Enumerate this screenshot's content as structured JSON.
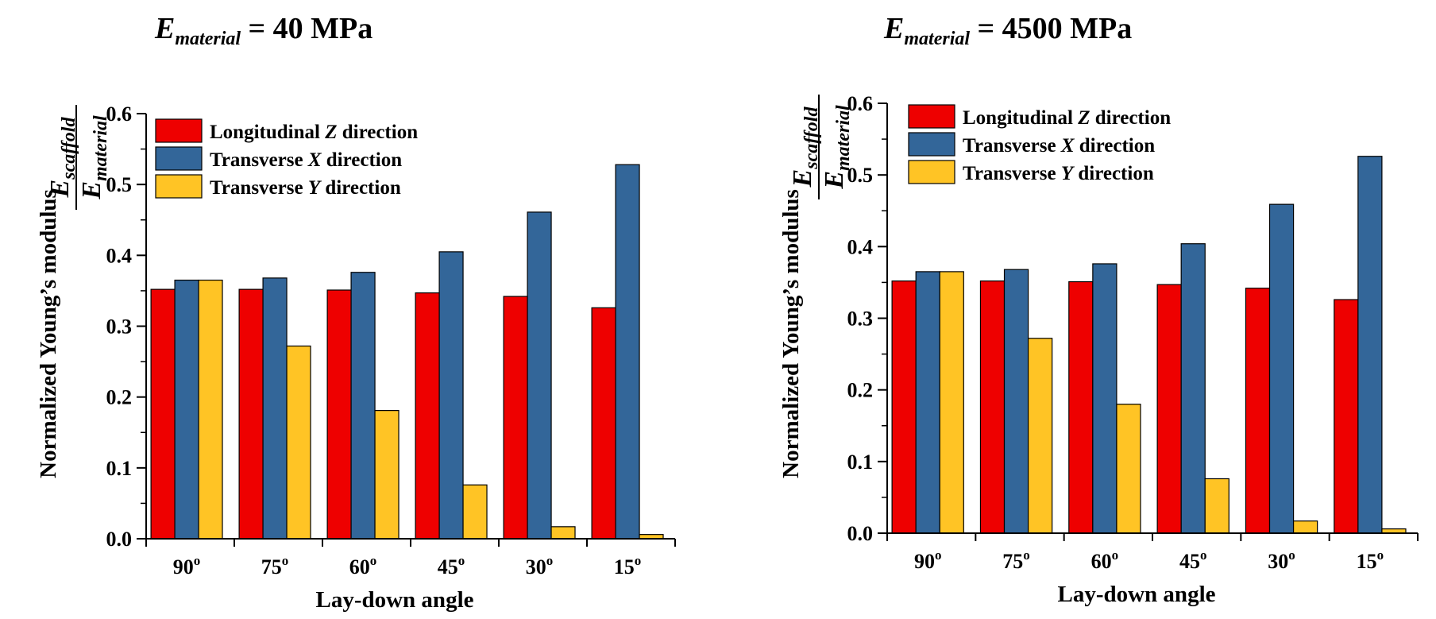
{
  "chart_data": [
    {
      "type": "bar",
      "title": {
        "symbol": "E",
        "subscript": "material",
        "rest": " = 40 MPa"
      },
      "xlabel": "Lay-down angle",
      "ylabel": "Normalized Young’s modulus",
      "ylabel_fraction": {
        "numerator": {
          "symbol": "E",
          "subscript": "scaffold"
        },
        "denominator": {
          "symbol": "E",
          "subscript": "material"
        }
      },
      "ylim": [
        0,
        0.6
      ],
      "yticks": [
        "0.0",
        "0.1",
        "0.2",
        "0.3",
        "0.4",
        "0.5",
        "0.6"
      ],
      "categories": [
        {
          "value": "90",
          "superscript": "o"
        },
        {
          "value": "75",
          "superscript": "o"
        },
        {
          "value": "60",
          "superscript": "o"
        },
        {
          "value": "45",
          "superscript": "o"
        },
        {
          "value": "30",
          "superscript": "o"
        },
        {
          "value": "15",
          "superscript": "o"
        }
      ],
      "legend_position": "top-left",
      "series": [
        {
          "name": {
            "pre": "Longitudinal ",
            "ital": "Z",
            "post": " direction"
          },
          "color": "#EE0000",
          "values": [
            0.352,
            0.352,
            0.351,
            0.347,
            0.342,
            0.326
          ]
        },
        {
          "name": {
            "pre": "Transverse ",
            "ital": "X",
            "post": " direction"
          },
          "color": "#336699",
          "values": [
            0.365,
            0.368,
            0.376,
            0.405,
            0.461,
            0.528
          ]
        },
        {
          "name": {
            "pre": "Transverse ",
            "ital": "Y",
            "post": " direction"
          },
          "color": "#FFC425",
          "values": [
            0.365,
            0.272,
            0.181,
            0.076,
            0.017,
            0.006
          ]
        }
      ]
    },
    {
      "type": "bar",
      "title": {
        "symbol": "E",
        "subscript": "material",
        "rest": " = 4500 MPa"
      },
      "xlabel": "Lay-down angle",
      "ylabel": "Normalized Young’s modulus",
      "ylabel_fraction": {
        "numerator": {
          "symbol": "E",
          "subscript": "scaffold"
        },
        "denominator": {
          "symbol": "E",
          "subscript": "material"
        }
      },
      "ylim": [
        0,
        0.6
      ],
      "yticks": [
        "0.0",
        "0.1",
        "0.2",
        "0.3",
        "0.4",
        "0.5",
        "0.6"
      ],
      "categories": [
        {
          "value": "90",
          "superscript": "o"
        },
        {
          "value": "75",
          "superscript": "o"
        },
        {
          "value": "60",
          "superscript": "o"
        },
        {
          "value": "45",
          "superscript": "o"
        },
        {
          "value": "30",
          "superscript": "o"
        },
        {
          "value": "15",
          "superscript": "o"
        }
      ],
      "legend_position": "top-left",
      "series": [
        {
          "name": {
            "pre": "Longitudinal ",
            "ital": "Z",
            "post": " direction"
          },
          "color": "#EE0000",
          "values": [
            0.352,
            0.352,
            0.351,
            0.347,
            0.342,
            0.326
          ]
        },
        {
          "name": {
            "pre": "Transverse ",
            "ital": "X",
            "post": " direction"
          },
          "color": "#336699",
          "values": [
            0.365,
            0.368,
            0.376,
            0.404,
            0.459,
            0.526
          ]
        },
        {
          "name": {
            "pre": "Transverse ",
            "ital": "Y",
            "post": " direction"
          },
          "color": "#FFC425",
          "values": [
            0.365,
            0.272,
            0.18,
            0.076,
            0.017,
            0.006
          ]
        }
      ]
    }
  ]
}
